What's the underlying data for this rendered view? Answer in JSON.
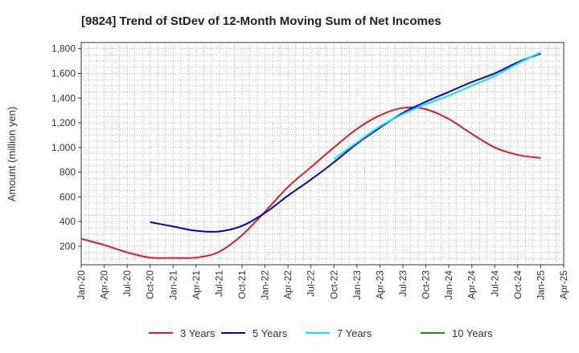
{
  "chart_data": {
    "type": "line",
    "title": "[9824]  Trend of StDev of 12-Month Moving Sum of Net Incomes",
    "xlabel": "",
    "ylabel": "Amount (million yen)",
    "ylim": [
      50,
      1850
    ],
    "yticks": [
      200,
      400,
      600,
      800,
      1000,
      1200,
      1400,
      1600,
      1800
    ],
    "ytick_labels": [
      "200",
      "400",
      "600",
      "800",
      "1,000",
      "1,200",
      "1,400",
      "1,600",
      "1,800"
    ],
    "x_categories": [
      "Jan-20",
      "Apr-20",
      "Jul-20",
      "Oct-20",
      "Jan-21",
      "Apr-21",
      "Jul-21",
      "Oct-21",
      "Jan-22",
      "Apr-22",
      "Jul-22",
      "Oct-22",
      "Jan-23",
      "Apr-23",
      "Jul-23",
      "Oct-23",
      "Jan-24",
      "Apr-24",
      "Jul-24",
      "Oct-24",
      "Jan-25",
      "Apr-25"
    ],
    "grid": true,
    "legend_position": "bottom",
    "series": [
      {
        "name": "3 Years",
        "color": "#e41a1c",
        "x": [
          "Jan-20",
          "Apr-20",
          "Jul-20",
          "Oct-20",
          "Jan-21",
          "Apr-21",
          "Jul-21",
          "Oct-21",
          "Jan-22",
          "Apr-22",
          "Jul-22",
          "Oct-22",
          "Jan-23",
          "Apr-23",
          "Jul-23",
          "Oct-23",
          "Jan-24",
          "Apr-24",
          "Jul-24",
          "Oct-24",
          "Jan-25"
        ],
        "values": [
          260,
          210,
          150,
          108,
          105,
          108,
          155,
          290,
          480,
          680,
          840,
          1000,
          1150,
          1260,
          1320,
          1310,
          1230,
          1110,
          1000,
          940,
          915
        ]
      },
      {
        "name": "5 Years",
        "color": "#0000cc",
        "x": [
          "Oct-20",
          "Jan-21",
          "Apr-21",
          "Jul-21",
          "Oct-21",
          "Jan-22",
          "Apr-22",
          "Jul-22",
          "Oct-22",
          "Jan-23",
          "Apr-23",
          "Jul-23",
          "Oct-23",
          "Jan-24",
          "Apr-24",
          "Jul-24",
          "Oct-24",
          "Jan-25"
        ],
        "values": [
          395,
          360,
          325,
          320,
          365,
          470,
          610,
          740,
          880,
          1030,
          1160,
          1280,
          1370,
          1450,
          1530,
          1600,
          1690,
          1760
        ]
      },
      {
        "name": "7 Years",
        "color": "#00e5ff",
        "x": [
          "Oct-22",
          "Jan-23",
          "Apr-23",
          "Jul-23",
          "Oct-23",
          "Jan-24",
          "Apr-24",
          "Jul-24",
          "Oct-24",
          "Jan-25"
        ],
        "values": [
          905,
          1040,
          1170,
          1270,
          1350,
          1420,
          1500,
          1580,
          1680,
          1770
        ]
      },
      {
        "name": "10 Years",
        "color": "#228b22",
        "x": [],
        "values": []
      }
    ]
  }
}
